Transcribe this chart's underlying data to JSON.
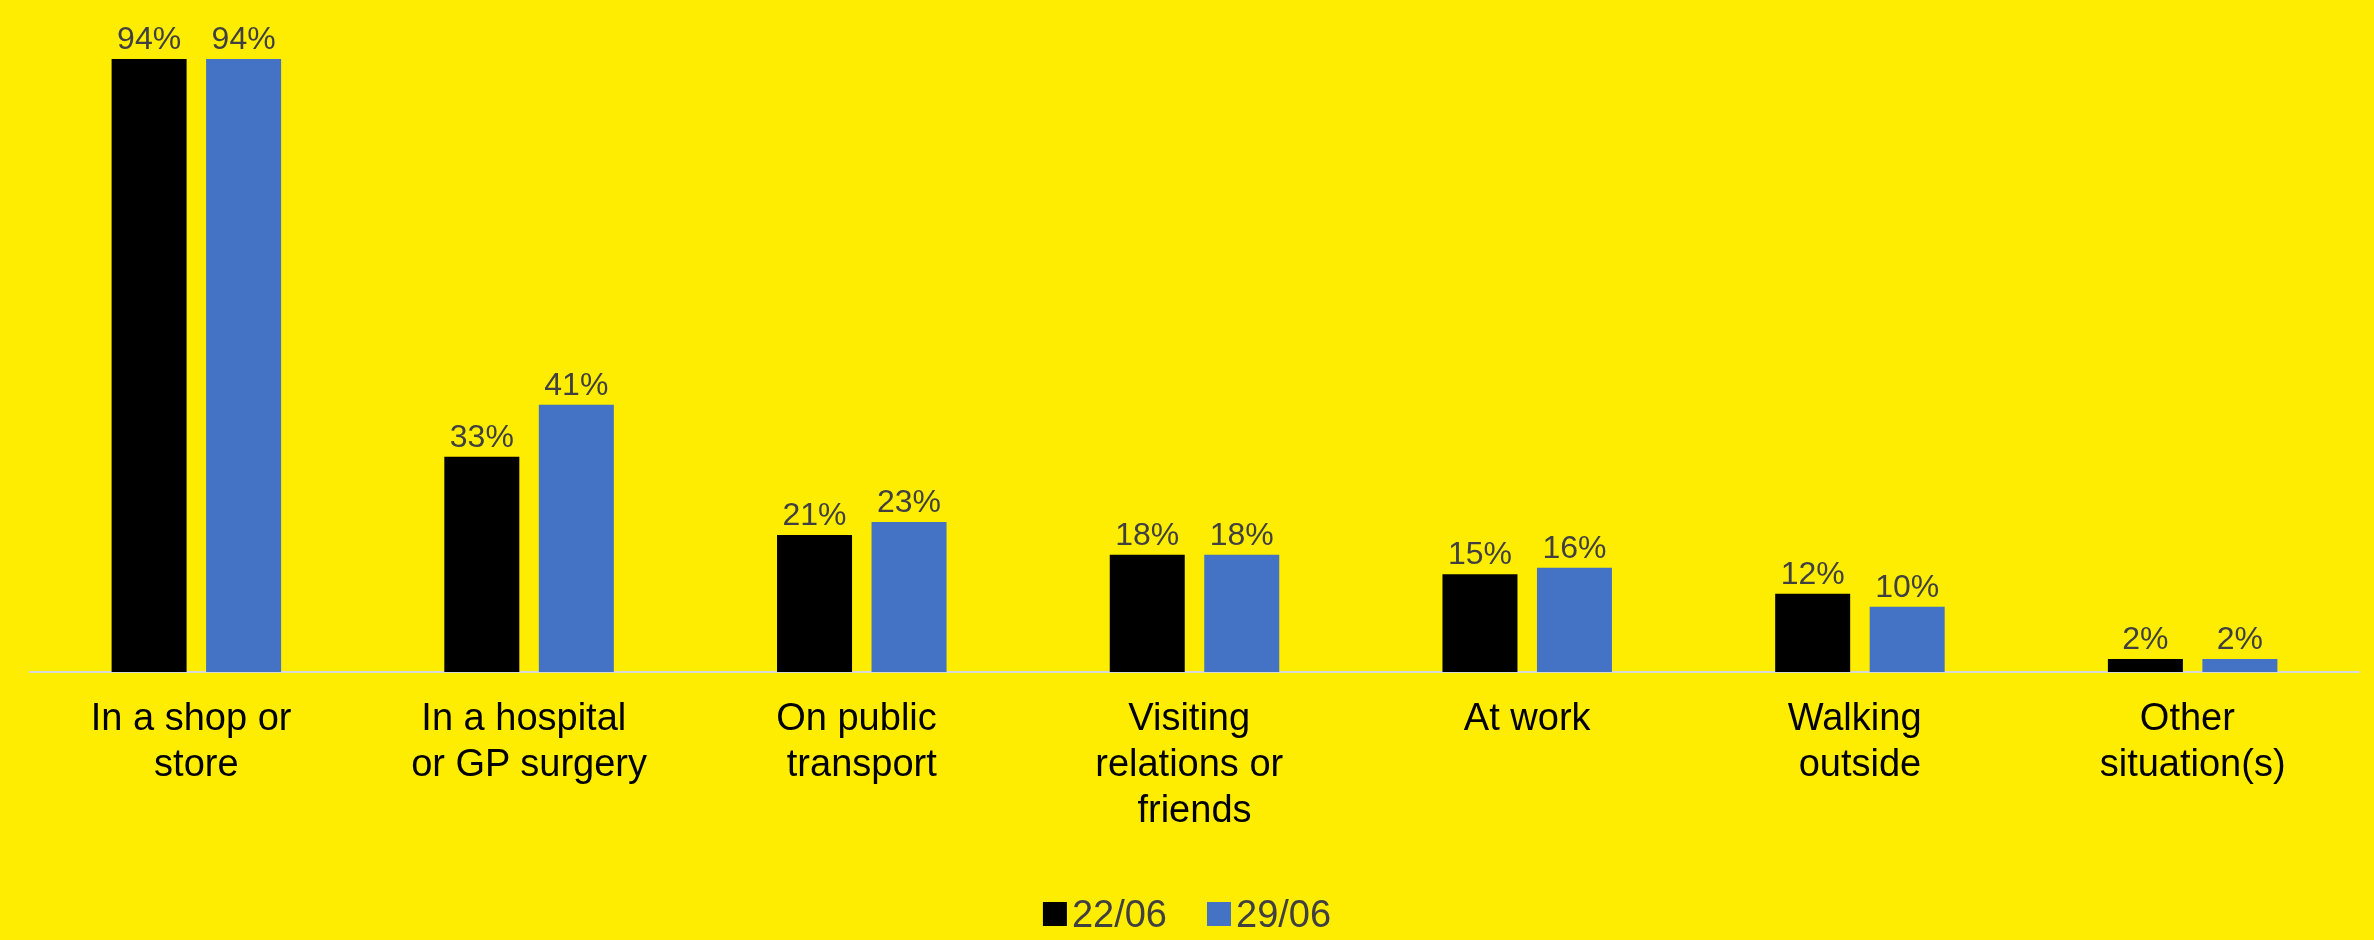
{
  "chart_data": {
    "type": "bar",
    "categories": [
      "In a shop or store",
      "In a hospital or GP surgery",
      "On public transport",
      "Visiting relations or friends",
      "At work",
      "Walking outside",
      "Other situation(s)"
    ],
    "series": [
      {
        "name": "22/06",
        "color": "#000000",
        "values": [
          94,
          33,
          21,
          18,
          15,
          12,
          2
        ],
        "value_labels": [
          "94%",
          "33%",
          "21%",
          "18%",
          "15%",
          "12%",
          "2%"
        ]
      },
      {
        "name": "29/06",
        "color": "#4472c4",
        "values": [
          94,
          41,
          23,
          18,
          16,
          10,
          2
        ],
        "value_labels": [
          "94%",
          "41%",
          "23%",
          "18%",
          "16%",
          "10%",
          "2%"
        ]
      }
    ],
    "legend": "bottom"
  }
}
